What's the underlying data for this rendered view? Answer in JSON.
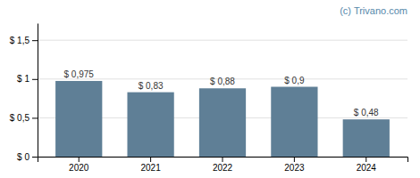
{
  "chart_data": {
    "type": "bar",
    "categories": [
      "2020",
      "2021",
      "2022",
      "2023",
      "2024"
    ],
    "values": [
      0.975,
      0.83,
      0.88,
      0.9,
      0.48
    ],
    "value_labels": [
      "$ 0,975",
      "$ 0,83",
      "$ 0,88",
      "$ 0,9",
      "$ 0,48"
    ],
    "color": "#5f7f96",
    "ylim": [
      0,
      1.72
    ],
    "yticks": [
      {
        "value": 0,
        "label": "$ 0"
      },
      {
        "value": 0.5,
        "label": "$ 0,5"
      },
      {
        "value": 1.0,
        "label": "$ 1"
      },
      {
        "value": 1.5,
        "label": "$ 1,5"
      }
    ],
    "grid": true,
    "annotations": [
      "(c) Trivano.com"
    ]
  }
}
